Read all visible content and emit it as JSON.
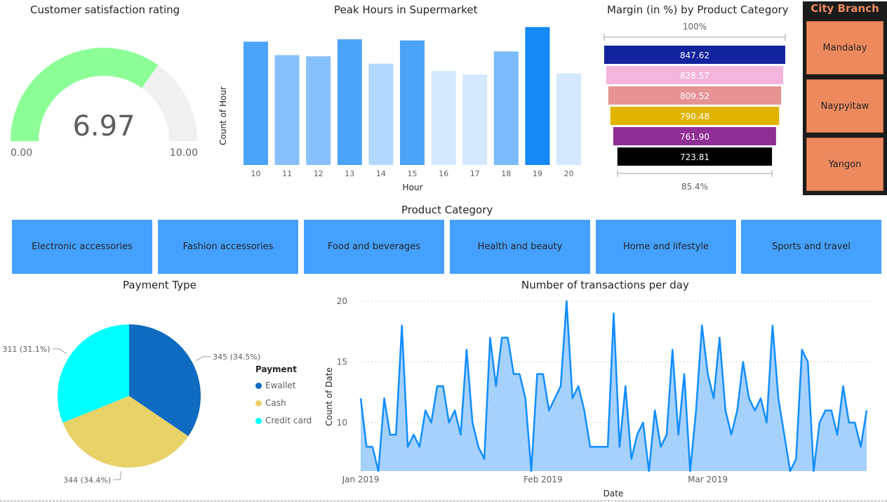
{
  "gauge": {
    "title": "Customer satisfaction rating",
    "value": 6.97,
    "value_label": "6.97",
    "min_label": "0.00",
    "max_label": "10.00",
    "fill_color": "#8cfe96",
    "track_color": "#f0f0f0"
  },
  "peak_hours": {
    "title": "Peak Hours in Supermarket",
    "xlabel": "Hour",
    "ylabel": "Count of Hour"
  },
  "funnel": {
    "title": "Margin (in %) by Product Category",
    "top_label": "100%",
    "bottom_label": "85.4%"
  },
  "city_branch": {
    "title": "City Branch",
    "items": [
      "Mandalay",
      "Naypyitaw",
      "Yangon"
    ]
  },
  "product_category": {
    "title": "Product Category",
    "items": [
      "Electronic accessories",
      "Fashion accessories",
      "Food and beverages",
      "Health and beauty",
      "Home and lifestyle",
      "Sports and travel"
    ]
  },
  "payment": {
    "title": "Payment Type",
    "legend_title": "Payment"
  },
  "transactions": {
    "title": "Number of transactions per day",
    "xlabel": "Date",
    "ylabel": "Count of Date"
  },
  "chart_data": [
    {
      "type": "bar",
      "title": "Peak Hours in Supermarket",
      "xlabel": "Hour",
      "ylabel": "Count of Hour",
      "categories": [
        "10",
        "11",
        "12",
        "13",
        "14",
        "15",
        "16",
        "17",
        "18",
        "19",
        "20"
      ],
      "values": [
        101,
        90,
        89,
        103,
        83,
        102,
        77,
        74,
        93,
        113,
        75
      ],
      "colors": [
        "#4ca4f9",
        "#87c0fb",
        "#87c0fb",
        "#4ca4f9",
        "#b4d8fd",
        "#4ca4f9",
        "#d4e8fe",
        "#d4e8fe",
        "#7bbafb",
        "#1589f5",
        "#d4e8fe"
      ],
      "ylim": [
        0,
        115
      ],
      "grid": false
    },
    {
      "type": "bar",
      "title": "Margin (in %) by Product Category",
      "values": [
        847.62,
        828.57,
        809.52,
        790.48,
        761.9,
        723.81
      ],
      "value_labels": [
        "847.62",
        "828.57",
        "809.52",
        "790.48",
        "761.90",
        "723.81"
      ],
      "colors": [
        "#12239e",
        "#f3b5dc",
        "#e69394",
        "#e0b400",
        "#8f2f96",
        "#000000"
      ],
      "label_colors": [
        "#ffffff",
        "#ffffff",
        "#ffffff",
        "#ffffff",
        "#ffffff",
        "#ffffff"
      ]
    },
    {
      "type": "pie",
      "title": "Payment Type",
      "categories": [
        "Ewallet",
        "Cash",
        "Credit card"
      ],
      "values": [
        345,
        344,
        311
      ],
      "labels": [
        "345 (34.5%)",
        "344 (34.4%)",
        "311 (31.1%)"
      ],
      "colors": [
        "#0f6bc1",
        "#e8d166",
        "#00ffff"
      ],
      "legend": "right"
    },
    {
      "type": "area",
      "title": "Number of transactions per day",
      "xlabel": "Date",
      "ylabel": "Count of Date",
      "x_start": "2019-01-01",
      "x_ticks": [
        "Jan 2019",
        "Feb 2019",
        "Mar 2019"
      ],
      "y_ticks": [
        10,
        15,
        20
      ],
      "ylim": [
        6,
        20
      ],
      "values": [
        12,
        8,
        8,
        6,
        12,
        9,
        9,
        18,
        8,
        9,
        8,
        11,
        10,
        13,
        13,
        10,
        11,
        9,
        16,
        10,
        8,
        7,
        17,
        13,
        17,
        17,
        14,
        14,
        12,
        6,
        14,
        14,
        11,
        12,
        13,
        20,
        12,
        13,
        11,
        8,
        8,
        8,
        8,
        19,
        8,
        13,
        7,
        9,
        10,
        6,
        11,
        8,
        9,
        16,
        9,
        14,
        6,
        11,
        18,
        14,
        12,
        17,
        11,
        9,
        11,
        15,
        12,
        11,
        12,
        10,
        18,
        12,
        9,
        6,
        7,
        16,
        15,
        6,
        10,
        11,
        11,
        9,
        13,
        10,
        10,
        8,
        11
      ],
      "line_color": "#118dff",
      "fill_color": "#a6d1fd"
    }
  ]
}
